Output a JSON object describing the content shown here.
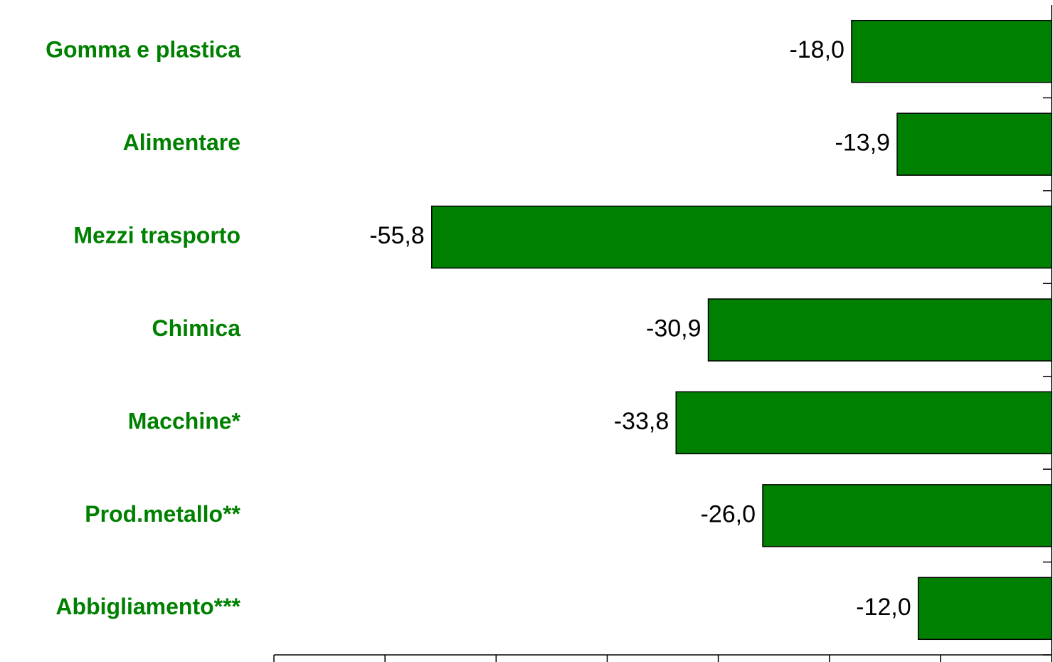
{
  "chart_data": {
    "type": "bar",
    "orientation": "horizontal",
    "categories": [
      "Gomma e plastica",
      "Alimentare",
      "Mezzi trasporto",
      "Chimica",
      "Macchine*",
      "Prod.metallo**",
      "Abbigliamento***"
    ],
    "values": [
      -18.0,
      -13.9,
      -55.8,
      -30.9,
      -33.8,
      -26.0,
      -12.0
    ],
    "value_labels": [
      "-18,0",
      "-13,9",
      "-55,8",
      "-30,9",
      "-33,8",
      "-26,0",
      "-12,0"
    ],
    "color": "#008000",
    "xlim": [
      -70,
      0
    ],
    "xticks": [
      -70,
      -60,
      -50,
      -40,
      -30,
      -20,
      -10,
      0
    ]
  }
}
